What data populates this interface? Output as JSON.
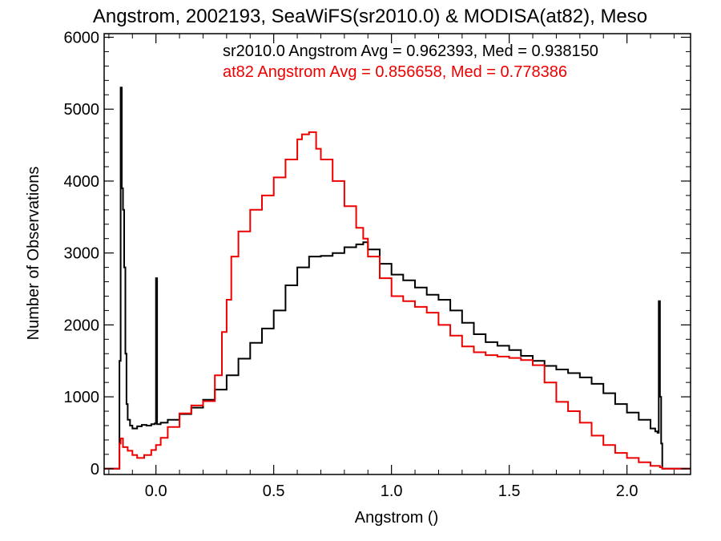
{
  "chart_data": {
    "type": "line",
    "title": "Angstrom, 2002193, SeaWiFS(sr2010.0) & MODISA(at82), Meso",
    "xlabel": "Angstrom ()",
    "ylabel": "Number of Observations",
    "xlim": [
      -0.22,
      2.27
    ],
    "ylim": [
      -80,
      6050
    ],
    "xticks": [
      0.0,
      0.5,
      1.0,
      1.5,
      2.0
    ],
    "xtick_labels": [
      "0.0",
      "0.5",
      "1.0",
      "1.5",
      "2.0"
    ],
    "yticks": [
      0,
      1000,
      2000,
      3000,
      4000,
      5000,
      6000
    ],
    "ytick_labels": [
      "0",
      "1000",
      "2000",
      "3000",
      "4000",
      "5000",
      "6000"
    ],
    "grid": false,
    "annotations": [
      {
        "text": "sr2010.0 Angstrom Avg = 0.962393, Med = 0.938150",
        "color": "#000000"
      },
      {
        "text": "at82 Angstrom Avg = 0.856658, Med = 0.778386",
        "color": "#ee0000"
      }
    ],
    "series": [
      {
        "color": "#000000",
        "points": [
          [
            -0.22,
            0
          ],
          [
            -0.16,
            0
          ],
          [
            -0.155,
            1500
          ],
          [
            -0.15,
            5300
          ],
          [
            -0.145,
            3900
          ],
          [
            -0.14,
            3600
          ],
          [
            -0.135,
            2800
          ],
          [
            -0.13,
            1600
          ],
          [
            -0.125,
            900
          ],
          [
            -0.12,
            680
          ],
          [
            -0.11,
            600
          ],
          [
            -0.1,
            560
          ],
          [
            -0.08,
            590
          ],
          [
            -0.06,
            610
          ],
          [
            -0.04,
            600
          ],
          [
            -0.02,
            620
          ],
          [
            -0.005,
            630
          ],
          [
            0.0,
            2650
          ],
          [
            0.005,
            620
          ],
          [
            0.02,
            640
          ],
          [
            0.05,
            680
          ],
          [
            0.1,
            760
          ],
          [
            0.15,
            850
          ],
          [
            0.2,
            960
          ],
          [
            0.25,
            1100
          ],
          [
            0.3,
            1300
          ],
          [
            0.35,
            1530
          ],
          [
            0.4,
            1750
          ],
          [
            0.45,
            1950
          ],
          [
            0.5,
            2200
          ],
          [
            0.55,
            2550
          ],
          [
            0.6,
            2800
          ],
          [
            0.65,
            2950
          ],
          [
            0.7,
            2960
          ],
          [
            0.75,
            3000
          ],
          [
            0.8,
            3080
          ],
          [
            0.85,
            3120
          ],
          [
            0.88,
            3150
          ],
          [
            0.9,
            3050
          ],
          [
            0.95,
            2850
          ],
          [
            1.0,
            2700
          ],
          [
            1.05,
            2620
          ],
          [
            1.1,
            2520
          ],
          [
            1.15,
            2420
          ],
          [
            1.2,
            2350
          ],
          [
            1.25,
            2200
          ],
          [
            1.3,
            2030
          ],
          [
            1.35,
            1870
          ],
          [
            1.4,
            1760
          ],
          [
            1.45,
            1710
          ],
          [
            1.5,
            1650
          ],
          [
            1.55,
            1570
          ],
          [
            1.6,
            1500
          ],
          [
            1.65,
            1430
          ],
          [
            1.7,
            1380
          ],
          [
            1.75,
            1330
          ],
          [
            1.8,
            1270
          ],
          [
            1.85,
            1180
          ],
          [
            1.9,
            1050
          ],
          [
            1.95,
            900
          ],
          [
            2.0,
            780
          ],
          [
            2.05,
            680
          ],
          [
            2.1,
            560
          ],
          [
            2.12,
            520
          ],
          [
            2.13,
            500
          ],
          [
            2.135,
            2330
          ],
          [
            2.14,
            1000
          ],
          [
            2.145,
            350
          ],
          [
            2.15,
            0
          ],
          [
            2.27,
            0
          ]
        ]
      },
      {
        "color": "#ee0000",
        "points": [
          [
            -0.22,
            0
          ],
          [
            -0.16,
            0
          ],
          [
            -0.155,
            350
          ],
          [
            -0.15,
            420
          ],
          [
            -0.14,
            300
          ],
          [
            -0.12,
            250
          ],
          [
            -0.1,
            190
          ],
          [
            -0.08,
            150
          ],
          [
            -0.05,
            190
          ],
          [
            -0.02,
            260
          ],
          [
            0.0,
            330
          ],
          [
            0.02,
            430
          ],
          [
            0.05,
            580
          ],
          [
            0.1,
            770
          ],
          [
            0.15,
            880
          ],
          [
            0.2,
            940
          ],
          [
            0.25,
            1300
          ],
          [
            0.28,
            1900
          ],
          [
            0.3,
            2350
          ],
          [
            0.32,
            2950
          ],
          [
            0.35,
            3300
          ],
          [
            0.4,
            3600
          ],
          [
            0.45,
            3800
          ],
          [
            0.5,
            4050
          ],
          [
            0.55,
            4300
          ],
          [
            0.6,
            4580
          ],
          [
            0.62,
            4650
          ],
          [
            0.65,
            4680
          ],
          [
            0.68,
            4450
          ],
          [
            0.7,
            4300
          ],
          [
            0.75,
            4000
          ],
          [
            0.8,
            3650
          ],
          [
            0.85,
            3350
          ],
          [
            0.88,
            3200
          ],
          [
            0.9,
            2950
          ],
          [
            0.95,
            2650
          ],
          [
            1.0,
            2400
          ],
          [
            1.05,
            2330
          ],
          [
            1.1,
            2250
          ],
          [
            1.15,
            2170
          ],
          [
            1.2,
            2000
          ],
          [
            1.25,
            1850
          ],
          [
            1.3,
            1700
          ],
          [
            1.35,
            1620
          ],
          [
            1.4,
            1580
          ],
          [
            1.45,
            1560
          ],
          [
            1.5,
            1540
          ],
          [
            1.55,
            1510
          ],
          [
            1.6,
            1440
          ],
          [
            1.65,
            1200
          ],
          [
            1.7,
            930
          ],
          [
            1.75,
            800
          ],
          [
            1.8,
            640
          ],
          [
            1.85,
            460
          ],
          [
            1.9,
            330
          ],
          [
            1.95,
            220
          ],
          [
            2.0,
            150
          ],
          [
            2.05,
            90
          ],
          [
            2.1,
            40
          ],
          [
            2.14,
            20
          ],
          [
            2.15,
            0
          ],
          [
            2.27,
            0
          ]
        ]
      }
    ]
  }
}
